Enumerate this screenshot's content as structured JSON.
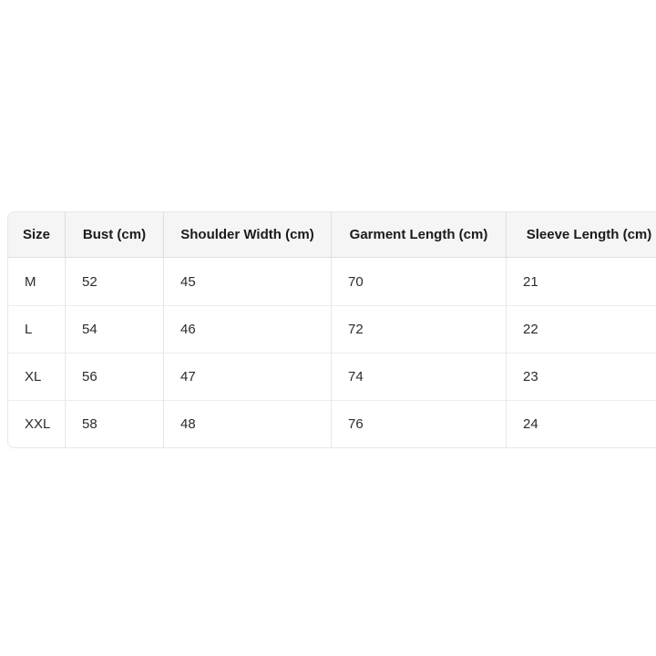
{
  "table": {
    "name": "garment-size-chart",
    "columns": [
      {
        "label": "Size"
      },
      {
        "label": "Bust (cm)"
      },
      {
        "label": "Shoulder Width (cm)"
      },
      {
        "label": "Garment Length (cm)"
      },
      {
        "label": "Sleeve Length (cm)"
      }
    ],
    "rows": [
      [
        "M",
        "52",
        "45",
        "70",
        "21"
      ],
      [
        "L",
        "54",
        "46",
        "72",
        "22"
      ],
      [
        "XL",
        "56",
        "47",
        "74",
        "23"
      ],
      [
        "XXL",
        "58",
        "48",
        "76",
        "24"
      ]
    ]
  },
  "colors": {
    "header_background": "#f5f5f5",
    "header_text": "#1b1b1b",
    "body_text": "#2b2b2b",
    "divider": "#e6e6e6",
    "page_background": "#ffffff"
  }
}
